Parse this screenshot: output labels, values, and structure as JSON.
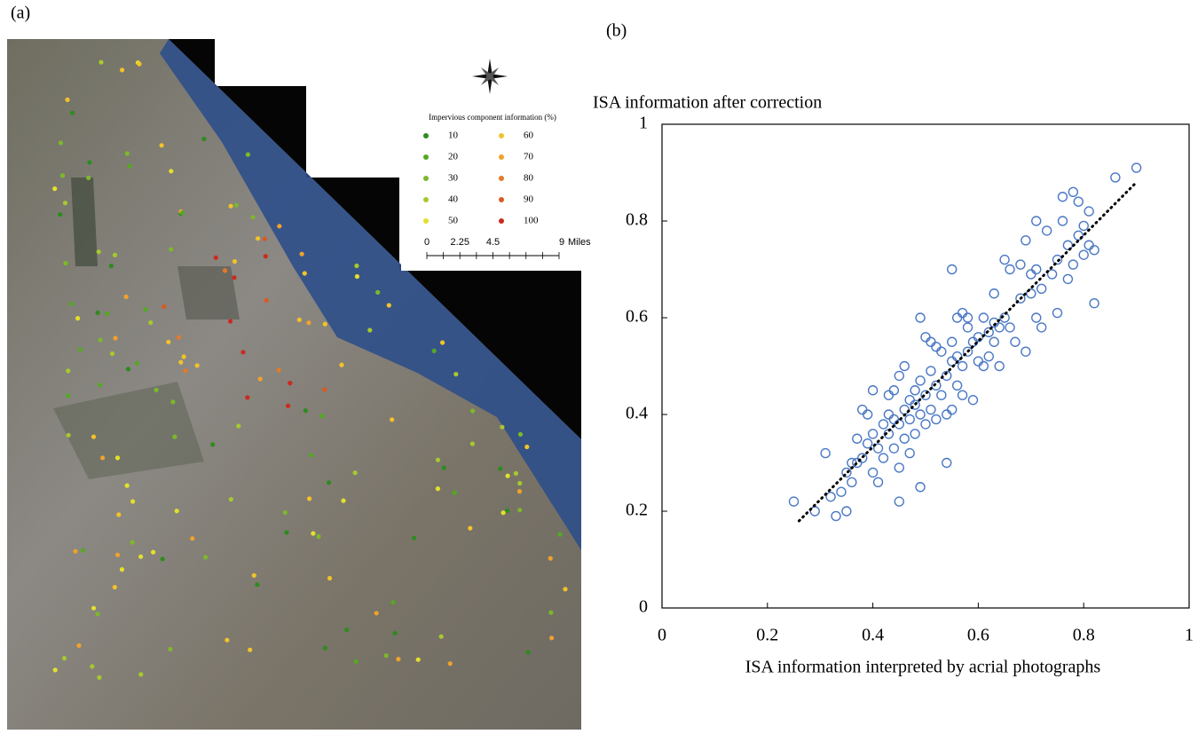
{
  "chart_data": [
    {
      "type": "map",
      "panel": "(a)",
      "legend_title": "Impervious component information (%)",
      "legend": [
        {
          "value": 10,
          "color": "#2e8b1f"
        },
        {
          "value": 20,
          "color": "#55a824"
        },
        {
          "value": 30,
          "color": "#7cb82a"
        },
        {
          "value": 40,
          "color": "#a6c92e"
        },
        {
          "value": 50,
          "color": "#e3e02c"
        },
        {
          "value": 60,
          "color": "#f2c22a"
        },
        {
          "value": 70,
          "color": "#f0a22b"
        },
        {
          "value": 80,
          "color": "#e57a27"
        },
        {
          "value": 90,
          "color": "#d95a23"
        },
        {
          "value": 100,
          "color": "#cc2a1e"
        }
      ],
      "scale_ticks": [
        0,
        2.25,
        4.5,
        9
      ],
      "scale_unit": "Miles"
    },
    {
      "type": "scatter",
      "panel": "(b)",
      "y_label": "ISA information after correction",
      "x_label": "ISA information interpreted by acrial photographs",
      "xlim": [
        0,
        1
      ],
      "ylim": [
        0,
        1
      ],
      "xticks": [
        0,
        0.2,
        0.4,
        0.6,
        0.8,
        1
      ],
      "yticks": [
        0,
        0.2,
        0.4,
        0.6,
        0.8,
        1
      ],
      "color": "#4a78c4",
      "x": [
        0.25,
        0.29,
        0.31,
        0.32,
        0.33,
        0.34,
        0.35,
        0.35,
        0.36,
        0.36,
        0.37,
        0.37,
        0.38,
        0.38,
        0.39,
        0.39,
        0.4,
        0.4,
        0.4,
        0.41,
        0.41,
        0.42,
        0.42,
        0.43,
        0.43,
        0.43,
        0.44,
        0.44,
        0.44,
        0.45,
        0.45,
        0.45,
        0.45,
        0.46,
        0.46,
        0.46,
        0.47,
        0.47,
        0.47,
        0.48,
        0.48,
        0.48,
        0.49,
        0.49,
        0.49,
        0.49,
        0.5,
        0.5,
        0.5,
        0.51,
        0.51,
        0.51,
        0.52,
        0.52,
        0.52,
        0.53,
        0.53,
        0.54,
        0.54,
        0.54,
        0.55,
        0.55,
        0.55,
        0.55,
        0.56,
        0.56,
        0.56,
        0.57,
        0.57,
        0.57,
        0.58,
        0.58,
        0.58,
        0.59,
        0.59,
        0.6,
        0.6,
        0.61,
        0.61,
        0.62,
        0.62,
        0.63,
        0.63,
        0.63,
        0.64,
        0.64,
        0.65,
        0.65,
        0.66,
        0.66,
        0.67,
        0.68,
        0.68,
        0.69,
        0.69,
        0.7,
        0.7,
        0.71,
        0.71,
        0.71,
        0.72,
        0.72,
        0.73,
        0.74,
        0.75,
        0.75,
        0.76,
        0.76,
        0.77,
        0.77,
        0.78,
        0.78,
        0.79,
        0.79,
        0.8,
        0.8,
        0.81,
        0.81,
        0.82,
        0.82,
        0.86,
        0.9
      ],
      "y": [
        0.22,
        0.2,
        0.32,
        0.23,
        0.19,
        0.24,
        0.2,
        0.28,
        0.3,
        0.26,
        0.35,
        0.3,
        0.41,
        0.31,
        0.4,
        0.34,
        0.28,
        0.45,
        0.36,
        0.26,
        0.33,
        0.38,
        0.31,
        0.36,
        0.44,
        0.4,
        0.39,
        0.33,
        0.45,
        0.22,
        0.38,
        0.48,
        0.29,
        0.5,
        0.41,
        0.35,
        0.43,
        0.32,
        0.39,
        0.45,
        0.36,
        0.42,
        0.6,
        0.47,
        0.4,
        0.25,
        0.56,
        0.44,
        0.38,
        0.55,
        0.49,
        0.41,
        0.46,
        0.54,
        0.39,
        0.53,
        0.44,
        0.48,
        0.4,
        0.3,
        0.7,
        0.55,
        0.51,
        0.41,
        0.6,
        0.52,
        0.46,
        0.61,
        0.5,
        0.44,
        0.58,
        0.53,
        0.6,
        0.55,
        0.43,
        0.51,
        0.56,
        0.6,
        0.5,
        0.57,
        0.52,
        0.65,
        0.55,
        0.59,
        0.58,
        0.5,
        0.6,
        0.72,
        0.58,
        0.7,
        0.55,
        0.71,
        0.64,
        0.76,
        0.53,
        0.65,
        0.69,
        0.8,
        0.6,
        0.7,
        0.58,
        0.66,
        0.78,
        0.69,
        0.61,
        0.72,
        0.85,
        0.8,
        0.68,
        0.75,
        0.86,
        0.71,
        0.84,
        0.77,
        0.73,
        0.79,
        0.82,
        0.75,
        0.63,
        0.74,
        0.89,
        0.91
      ],
      "trendline": {
        "x": [
          0.26,
          0.9
        ],
        "y": [
          0.18,
          0.88
        ]
      }
    }
  ]
}
